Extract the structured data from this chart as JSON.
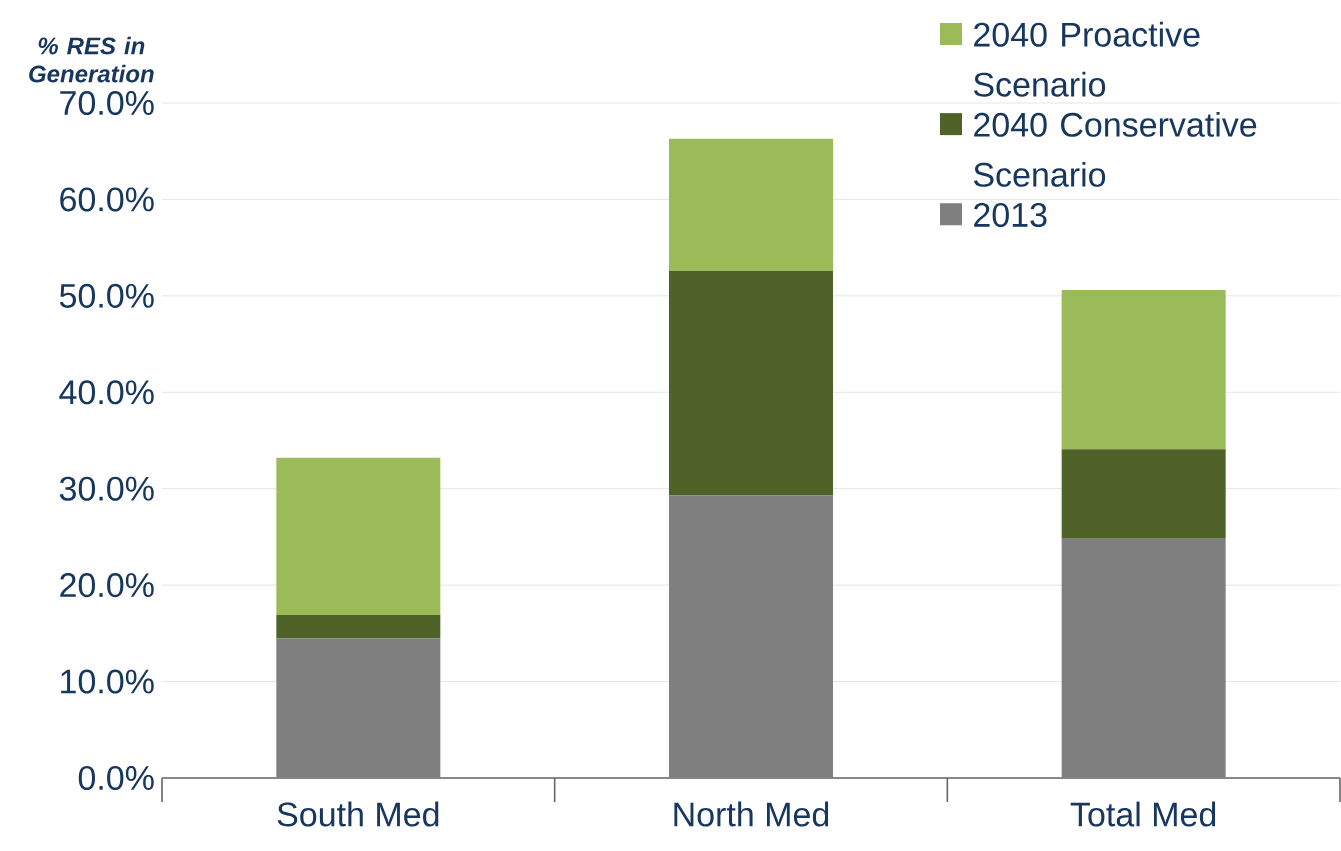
{
  "chart_data": {
    "type": "bar",
    "stacked": true,
    "ylabel": "% RES in Generation",
    "categories": [
      "South Med",
      "North Med",
      "Total Med"
    ],
    "series": [
      {
        "name": "2013",
        "color": "#7f7f7f",
        "values": [
          14.5,
          29.3,
          24.8
        ]
      },
      {
        "name": "2040 Conservative Scenario",
        "color": "#4f6228",
        "values": [
          2.4,
          23.3,
          9.3
        ]
      },
      {
        "name": "2040 Proactive Scenario",
        "color": "#9bbb59",
        "values": [
          16.3,
          13.7,
          16.5
        ]
      }
    ],
    "ylim": [
      0,
      70
    ],
    "yticks": [
      {
        "value": 0,
        "label": "0.0%"
      },
      {
        "value": 10,
        "label": "10.0%"
      },
      {
        "value": 20,
        "label": "20.0%"
      },
      {
        "value": 30,
        "label": "30.0%"
      },
      {
        "value": 40,
        "label": "40.0%"
      },
      {
        "value": 50,
        "label": "50.0%"
      },
      {
        "value": 60,
        "label": "60.0%"
      },
      {
        "value": 70,
        "label": "70.0%"
      }
    ],
    "grid": "y",
    "legend": "top right"
  }
}
